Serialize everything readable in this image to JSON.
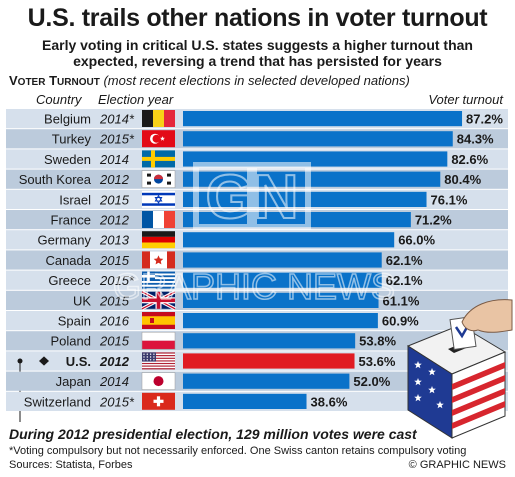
{
  "header": {
    "title": "U.S. trails other nations in voter turnout",
    "subtitle_line1": "Early voting in critical U.S. states suggests a higher turnout than",
    "subtitle_line2": "expected, reversing a trend that has persisted for years",
    "section_label": "Voter Turnout",
    "section_note": "(most recent elections in selected developed nations)"
  },
  "columns": {
    "country": "Country",
    "election_year": "Election year",
    "turnout": "Voter turnout"
  },
  "colors": {
    "bar": "#0a72c9",
    "highlight_bar": "#e01a22",
    "row_light": "#d6e0ec",
    "row_dark": "#bccbdc"
  },
  "chart_data": {
    "type": "bar",
    "orientation": "horizontal",
    "categories": [
      "Belgium",
      "Turkey",
      "Sweden",
      "South Korea",
      "Israel",
      "France",
      "Germany",
      "Canada",
      "Greece",
      "UK",
      "Spain",
      "Poland",
      "U.S.",
      "Japan",
      "Switzerland"
    ],
    "years": [
      "2014*",
      "2015*",
      "2014",
      "2012",
      "2015",
      "2012",
      "2013",
      "2015",
      "2015*",
      "2015",
      "2016",
      "2015",
      "2012",
      "2014",
      "2015*"
    ],
    "values": [
      87.2,
      84.3,
      82.6,
      80.4,
      76.1,
      71.2,
      66.0,
      62.1,
      62.1,
      61.1,
      60.9,
      53.8,
      53.6,
      52.0,
      38.6
    ],
    "value_labels": [
      "87.2%",
      "84.3%",
      "82.6%",
      "80.4%",
      "76.1%",
      "71.2%",
      "66.0%",
      "62.1%",
      "62.1%",
      "61.1%",
      "60.9%",
      "53.8%",
      "53.6%",
      "52.0%",
      "38.6%"
    ],
    "flags": [
      "belgium-flag",
      "turkey-flag",
      "sweden-flag",
      "south-korea-flag",
      "israel-flag",
      "france-flag",
      "germany-flag",
      "canada-flag",
      "greece-flag",
      "uk-flag",
      "spain-flag",
      "poland-flag",
      "us-flag",
      "japan-flag",
      "switzerland-flag"
    ],
    "highlight": "U.S.",
    "xlim": [
      0,
      100
    ]
  },
  "footer": {
    "caption": "During 2012 presidential election, 129 million votes were cast",
    "footnote": "*Voting compulsory but not necessarily enforced. One Swiss canton retains compulsory voting",
    "sources": "Sources: Statista, Forbes",
    "copyright": "© GRAPHIC NEWS"
  },
  "watermark": {
    "logo": "GN",
    "text": "GRAPHIC NEWS"
  }
}
